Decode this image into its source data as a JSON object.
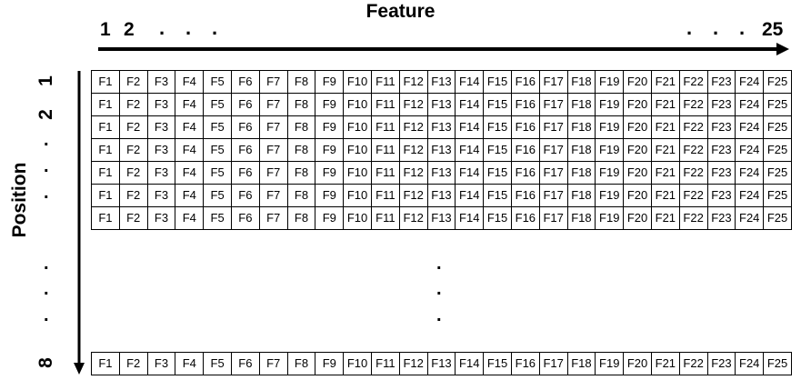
{
  "diagram": {
    "x_axis_title": "Feature",
    "y_axis_title": "Position",
    "x_start_labels": [
      "1",
      "2"
    ],
    "x_end_label": "25",
    "y_start_labels": [
      "1",
      "2"
    ],
    "y_end_label": "8",
    "ellipsis_dot": ".",
    "cells": [
      "F1",
      "F2",
      "F3",
      "F4",
      "F5",
      "F6",
      "F7",
      "F8",
      "F9",
      "F10",
      "F11",
      "F12",
      "F13",
      "F14",
      "F15",
      "F16",
      "F17",
      "F18",
      "F19",
      "F20",
      "F21",
      "F22",
      "F23",
      "F24",
      "F25"
    ],
    "top_rows_count": 7,
    "bottom_rows_count": 1
  }
}
